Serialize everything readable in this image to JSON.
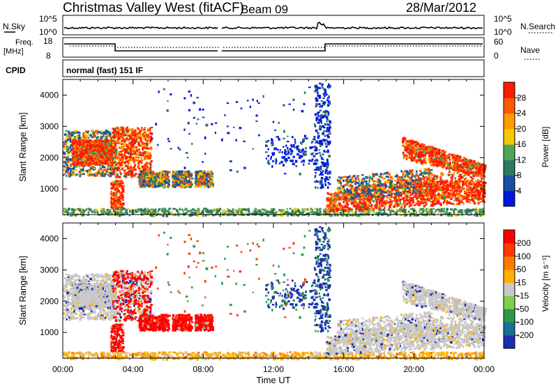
{
  "header": {
    "title": "Christmas Valley West (fitACF)",
    "beam": "Beam 09",
    "date": "28/Mar/2012"
  },
  "strip_nsky": {
    "left_label": "N.Sky",
    "right_label": "N.Search",
    "left_ticks": [
      "10^5",
      "10^0"
    ],
    "right_ticks": [
      "10^5",
      "10^0"
    ]
  },
  "strip_freq": {
    "left_label_1": "Freq.",
    "left_label_2": "[MHz]",
    "right_label": "Nave",
    "left_ticks": [
      "18",
      "8"
    ],
    "right_ticks": [
      "60",
      "0"
    ]
  },
  "cpid": {
    "label": "CPID",
    "value": "normal (fast) 151 IF"
  },
  "colors": {
    "power": [
      "#0018e0",
      "#1a4fa0",
      "#2f7a5e",
      "#4ea65a",
      "#f5c800",
      "#ff9a00",
      "#ff5a00",
      "#ff1a00"
    ],
    "velocity": [
      "#1a2fb0",
      "#1a6e9a",
      "#2a9a4a",
      "#7ed04a",
      "#c8c8c8",
      "#ffb000",
      "#ff7a00",
      "#ff3a00",
      "#ff0000"
    ]
  },
  "chart_data": [
    {
      "type": "heatmap",
      "ylabel": "Slant Range [km]",
      "xlabel": "",
      "xlim": [
        "00:00",
        "24:00"
      ],
      "ylim": [
        180,
        4500
      ],
      "y_ticks": [
        "1000",
        "2000",
        "3000",
        "4000"
      ],
      "x_tick_labels": [],
      "colorbar": {
        "label": "Power [dB]",
        "ticks": [
          "4",
          "8",
          "12",
          "16",
          "20",
          "24",
          "28"
        ],
        "range": [
          0,
          30
        ]
      }
    },
    {
      "type": "heatmap",
      "ylabel": "Slant Range [km]",
      "xlabel": "Time UT",
      "xlim": [
        "00:00",
        "24:00"
      ],
      "ylim": [
        180,
        4500
      ],
      "y_ticks": [
        "1000",
        "2000",
        "3000",
        "4000"
      ],
      "x_tick_labels": [
        "00:00",
        "04:00",
        "08:00",
        "12:00",
        "16:00",
        "20:00",
        "00:00"
      ],
      "colorbar": {
        "label": "Velocity [m s⁻¹]",
        "ticks": [
          "200",
          "100",
          "50",
          "15",
          "-15",
          "-50",
          "-100",
          "-200"
        ],
        "range": [
          -250,
          250
        ]
      }
    }
  ]
}
